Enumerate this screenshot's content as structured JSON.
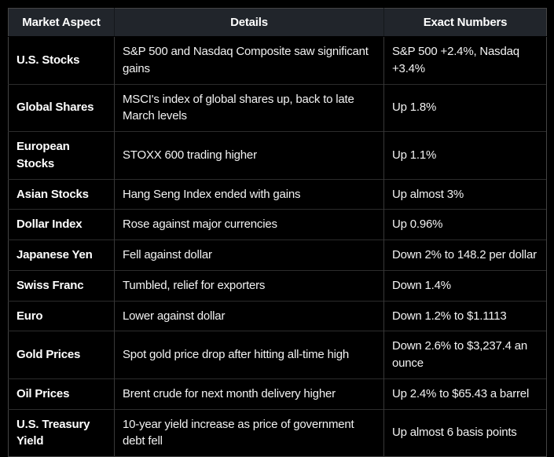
{
  "colors": {
    "page_background": "#000000",
    "header_background": "#21252b",
    "cell_background": "#000000",
    "header_text": "#ffffff",
    "body_text": "#f2f2f2",
    "border_inner": "#383838",
    "border_outer": "#454545"
  },
  "table": {
    "columns": [
      {
        "label": "Market Aspect"
      },
      {
        "label": "Details"
      },
      {
        "label": "Exact Numbers"
      }
    ],
    "rows": [
      {
        "aspect": "U.S. Stocks",
        "details": "S&P 500 and Nasdaq Composite saw significant gains",
        "numbers": "S&P 500 +2.4%, Nasdaq +3.4%"
      },
      {
        "aspect": "Global Shares",
        "details": "MSCI's index of global shares up, back to late March levels",
        "numbers": "Up 1.8%"
      },
      {
        "aspect": "European Stocks",
        "details": "STOXX 600 trading higher",
        "numbers": "Up 1.1%"
      },
      {
        "aspect": "Asian Stocks",
        "details": "Hang Seng Index ended with gains",
        "numbers": "Up almost 3%"
      },
      {
        "aspect": "Dollar Index",
        "details": "Rose against major currencies",
        "numbers": "Up 0.96%"
      },
      {
        "aspect": "Japanese Yen",
        "details": "Fell against dollar",
        "numbers": "Down 2% to 148.2 per dollar"
      },
      {
        "aspect": "Swiss Franc",
        "details": "Tumbled, relief for exporters",
        "numbers": "Down 1.4%"
      },
      {
        "aspect": "Euro",
        "details": "Lower against dollar",
        "numbers": "Down 1.2% to $1.1113"
      },
      {
        "aspect": "Gold Prices",
        "details": "Spot gold price drop after hitting all-time high",
        "numbers": "Down 2.6% to $3,237.4 an ounce"
      },
      {
        "aspect": "Oil Prices",
        "details": "Brent crude for next month delivery higher",
        "numbers": "Up 2.4% to $65.43 a barrel"
      },
      {
        "aspect": "U.S. Treasury Yield",
        "details": "10-year yield increase as price of government debt fell",
        "numbers": "Up almost 6 basis points"
      }
    ]
  }
}
